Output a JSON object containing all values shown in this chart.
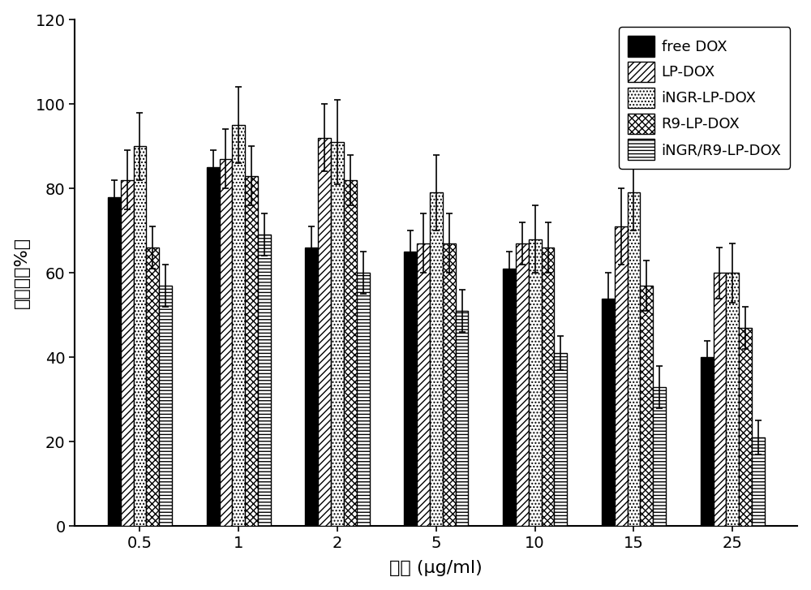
{
  "concentrations": [
    "0.5",
    "1",
    "2",
    "5",
    "10",
    "15",
    "25"
  ],
  "series": {
    "free DOX": {
      "values": [
        78,
        85,
        66,
        65,
        61,
        54,
        40
      ],
      "errors": [
        4,
        4,
        5,
        5,
        4,
        6,
        4
      ]
    },
    "LP-DOX": {
      "values": [
        82,
        87,
        92,
        67,
        67,
        71,
        60
      ],
      "errors": [
        7,
        7,
        8,
        7,
        5,
        9,
        6
      ]
    },
    "iNGR-LP-DOX": {
      "values": [
        90,
        95,
        91,
        79,
        68,
        79,
        60
      ],
      "errors": [
        8,
        9,
        10,
        9,
        8,
        9,
        7
      ]
    },
    "R9-LP-DOX": {
      "values": [
        66,
        83,
        82,
        67,
        66,
        57,
        47
      ],
      "errors": [
        5,
        7,
        6,
        7,
        6,
        6,
        5
      ]
    },
    "iNGR/R9-LP-DOX": {
      "values": [
        57,
        69,
        60,
        51,
        41,
        33,
        21
      ],
      "errors": [
        5,
        5,
        5,
        5,
        4,
        5,
        4
      ]
    }
  },
  "series_order": [
    "free DOX",
    "LP-DOX",
    "iNGR-LP-DOX",
    "R9-LP-DOX",
    "iNGR/R9-LP-DOX"
  ],
  "ylabel": "存活率（%）",
  "xlabel": "浓度 (μg/ml)",
  "ylim": [
    0,
    120
  ],
  "yticks": [
    0,
    20,
    40,
    60,
    80,
    100,
    120
  ],
  "bar_width": 0.13,
  "figsize": [
    10.0,
    7.27
  ],
  "dpi": 100,
  "legend_fontsize": 13,
  "axis_fontsize": 16,
  "tick_fontsize": 14
}
